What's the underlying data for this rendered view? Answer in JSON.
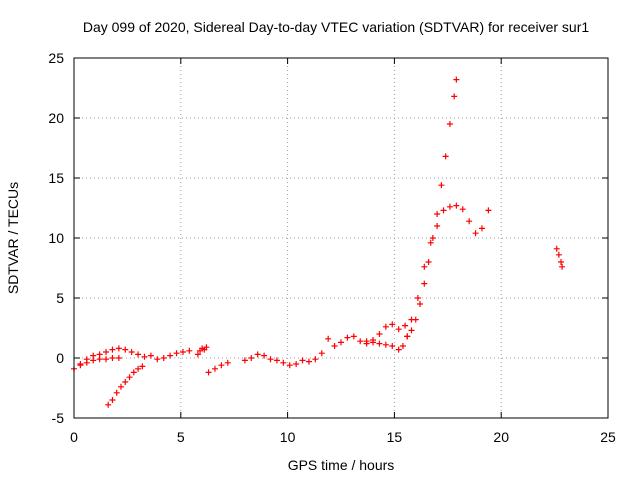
{
  "chart_data": {
    "type": "scatter",
    "title": "Day 099 of 2020, Sidereal Day-to-day VTEC variation (SDTVAR) for receiver sur1",
    "xlabel": "GPS time / hours",
    "ylabel": "SDTVAR / TECUs",
    "xlim": [
      0,
      25
    ],
    "ylim": [
      -5,
      25
    ],
    "xticks": [
      0,
      5,
      10,
      15,
      20,
      25
    ],
    "yticks": [
      -5,
      0,
      5,
      10,
      15,
      20,
      25
    ],
    "grid": true,
    "marker": "plus",
    "color": "#ff0000",
    "series": [
      {
        "x": [
          0.0,
          0.3,
          0.6,
          0.9,
          1.2,
          1.5,
          1.8,
          2.1,
          2.4,
          2.7,
          3.0,
          3.3,
          3.6,
          3.9,
          4.2,
          4.5,
          4.8,
          5.1,
          5.4
        ],
        "y": [
          -0.9,
          -0.5,
          -0.1,
          0.2,
          0.3,
          0.5,
          0.7,
          0.8,
          0.7,
          0.5,
          0.3,
          0.1,
          0.2,
          -0.1,
          0.0,
          0.2,
          0.4,
          0.5,
          0.6
        ]
      },
      {
        "x": [
          0.3,
          0.6,
          0.9,
          1.2,
          1.5,
          1.8,
          2.1
        ],
        "y": [
          -0.6,
          -0.4,
          -0.2,
          -0.1,
          -0.1,
          0.0,
          0.0
        ]
      },
      {
        "x": [
          1.6,
          1.8,
          2.0,
          2.2,
          2.4,
          2.6,
          2.8,
          3.0,
          3.2
        ],
        "y": [
          -3.9,
          -3.5,
          -2.9,
          -2.4,
          -2.0,
          -1.6,
          -1.2,
          -0.9,
          -0.7
        ]
      },
      {
        "x": [
          5.8,
          5.9,
          6.0,
          6.1,
          6.2
        ],
        "y": [
          0.3,
          0.6,
          0.8,
          0.7,
          0.9
        ]
      },
      {
        "x": [
          6.3,
          6.6,
          6.9,
          7.2
        ],
        "y": [
          -1.2,
          -0.9,
          -0.6,
          -0.4
        ]
      },
      {
        "x": [
          8.0,
          8.3,
          8.6,
          8.9,
          9.2,
          9.5,
          9.8,
          10.1,
          10.4,
          10.7,
          11.0,
          11.3,
          11.6
        ],
        "y": [
          -0.2,
          0.0,
          0.3,
          0.2,
          -0.1,
          -0.2,
          -0.4,
          -0.6,
          -0.5,
          -0.2,
          -0.3,
          -0.1,
          0.4
        ]
      },
      {
        "x": [
          11.9,
          12.2,
          12.5,
          12.8,
          13.1,
          13.4,
          13.7,
          14.0,
          14.3,
          14.6,
          14.9,
          15.2,
          15.5,
          15.8,
          16.1,
          16.4,
          16.7,
          17.0,
          17.3,
          17.6,
          17.9,
          18.2,
          18.5,
          18.8,
          19.1,
          19.4
        ],
        "y": [
          1.6,
          1.0,
          1.3,
          1.7,
          1.8,
          1.4,
          1.2,
          1.5,
          2.0,
          2.6,
          2.8,
          2.4,
          2.7,
          3.2,
          5.0,
          7.6,
          9.6,
          11.0,
          12.3,
          12.6,
          12.7,
          12.4,
          11.4,
          10.4,
          10.8,
          12.3
        ]
      },
      {
        "x": [
          13.7,
          14.0,
          14.3,
          14.6,
          14.9,
          15.2,
          15.4,
          15.6
        ],
        "y": [
          1.4,
          1.3,
          1.2,
          1.1,
          1.0,
          0.7,
          1.0,
          1.8
        ]
      },
      {
        "x": [
          15.6,
          15.8,
          16.0,
          16.2,
          16.4,
          16.6,
          16.8,
          17.0,
          17.2,
          17.4,
          17.6,
          17.8,
          17.9
        ],
        "y": [
          1.8,
          2.3,
          3.2,
          4.5,
          6.2,
          8.0,
          10.0,
          12.0,
          14.4,
          16.8,
          19.5,
          21.8,
          23.2
        ]
      },
      {
        "x": [
          22.6,
          22.7,
          22.8,
          22.85
        ],
        "y": [
          9.1,
          8.6,
          8.0,
          7.6
        ]
      }
    ]
  }
}
